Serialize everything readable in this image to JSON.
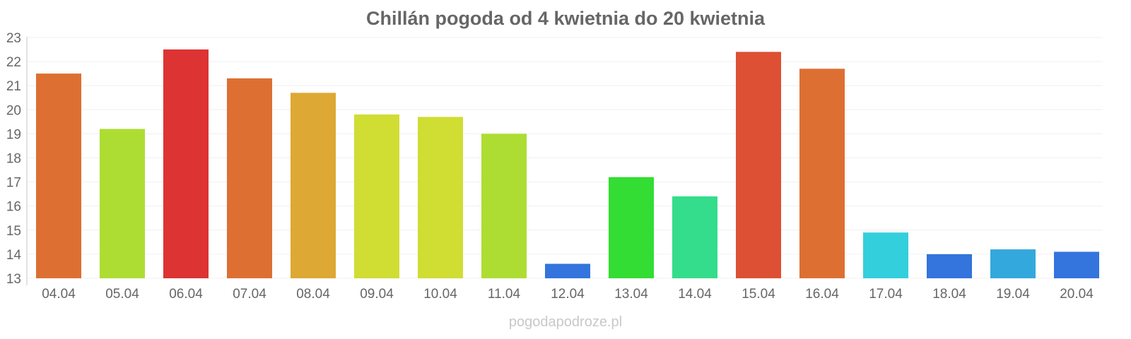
{
  "chart_data": {
    "type": "bar",
    "title": "Chillán pogoda od 4 kwietnia do 20 kwietnia",
    "categories": [
      "04.04",
      "05.04",
      "06.04",
      "07.04",
      "08.04",
      "09.04",
      "10.04",
      "11.04",
      "12.04",
      "13.04",
      "14.04",
      "15.04",
      "16.04",
      "17.04",
      "18.04",
      "19.04",
      "20.04"
    ],
    "values": [
      21.5,
      19.2,
      22.5,
      21.3,
      20.7,
      19.8,
      19.7,
      19.0,
      13.6,
      17.2,
      16.4,
      22.4,
      21.7,
      14.9,
      14.0,
      14.2,
      14.1
    ],
    "colors": [
      "#dd6f33",
      "#addd33",
      "#dd3333",
      "#dd6f33",
      "#dda833",
      "#d0dd33",
      "#d0dd33",
      "#addd33",
      "#3374dd",
      "#33dd33",
      "#33dd8b",
      "#dd5033",
      "#dd6f33",
      "#33cfdd",
      "#3374dd",
      "#33a8dd",
      "#3374dd"
    ],
    "yticks": [
      "13",
      "14",
      "15",
      "16",
      "17",
      "18",
      "19",
      "20",
      "21",
      "22",
      "23"
    ],
    "ylim": [
      13,
      23
    ],
    "xlabel": "",
    "ylabel": ""
  },
  "footer": "pogodapodroze.pl"
}
